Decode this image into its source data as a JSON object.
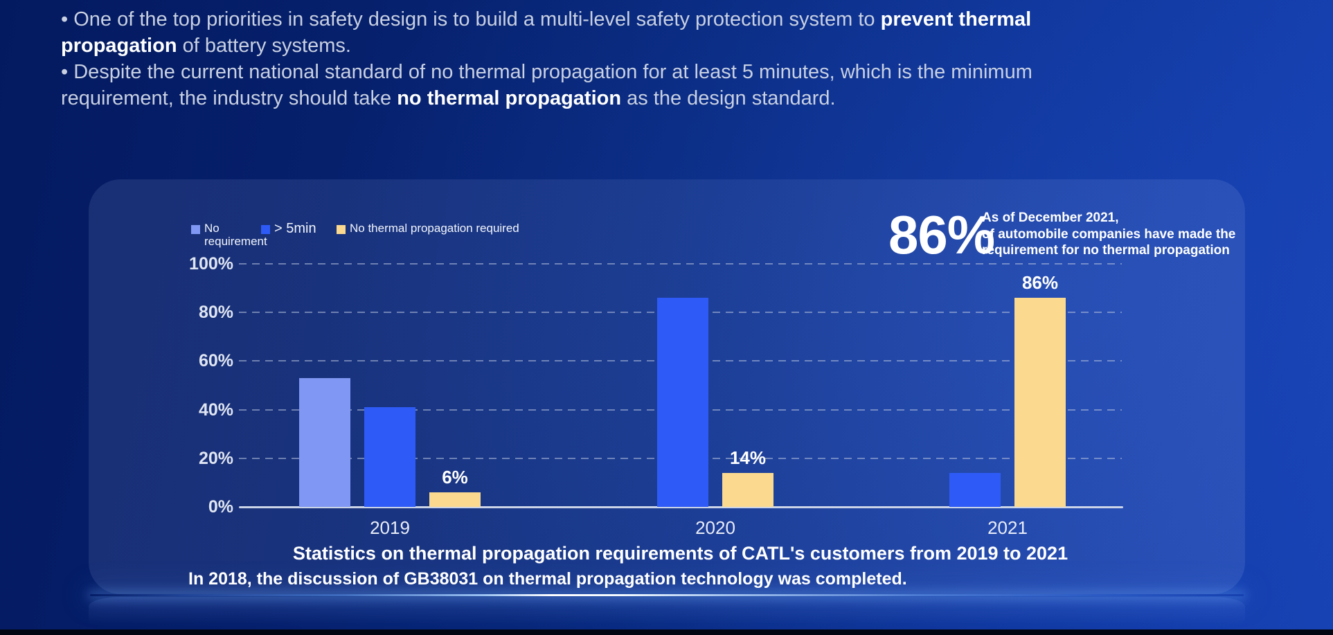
{
  "slide": {
    "bullets": [
      {
        "segments": [
          {
            "text": "• One of the top priorities in safety design is to build a multi-level safety protection system to ",
            "bold": false
          },
          {
            "text": "prevent thermal\npropagation",
            "bold": true
          },
          {
            "text": " of battery systems.",
            "bold": false
          }
        ]
      },
      {
        "segments": [
          {
            "text": "• Despite the current national standard of no thermal propagation for at least 5 minutes, which is the minimum\nrequirement, the industry should take ",
            "bold": false
          },
          {
            "text": "no thermal propagation",
            "bold": true
          },
          {
            "text": " as the design standard.",
            "bold": false
          }
        ]
      }
    ]
  },
  "panel": {
    "callout": {
      "value": "86%",
      "lines": [
        "As of December 2021,",
        "of automobile companies have made the",
        "requirement for no thermal propagation"
      ]
    },
    "title": "Statistics on thermal propagation requirements of CATL's customers from 2019 to 2021",
    "footnote": "In 2018, the discussion of GB38031 on thermal propagation technology was completed."
  },
  "chart_data": {
    "type": "bar",
    "title": "Statistics on thermal propagation requirements of CATL's customers from 2019 to 2021",
    "categories": [
      "2019",
      "2020",
      "2021"
    ],
    "series": [
      {
        "name": "No requirement",
        "legend_label": "No\nrequirement",
        "color": "#8097f3",
        "values": [
          53,
          null,
          null
        ],
        "labels": [
          null,
          null,
          null
        ]
      },
      {
        "name": "> 5min",
        "legend_label": "> 5min",
        "color": "#2e5bf7",
        "values": [
          41,
          86,
          14
        ],
        "labels": [
          null,
          null,
          null
        ]
      },
      {
        "name": "No thermal propagation required",
        "legend_label": "No thermal propagation required",
        "color": "#fbda90",
        "values": [
          6,
          14,
          86
        ],
        "labels": [
          "6%",
          "14%",
          "86%"
        ]
      }
    ],
    "y_ticks": [
      "0%",
      "20%",
      "40%",
      "60%",
      "80%",
      "100%"
    ],
    "ylim": [
      0,
      100
    ],
    "grid": "dashed horizontal",
    "legend_position": "top-left"
  }
}
